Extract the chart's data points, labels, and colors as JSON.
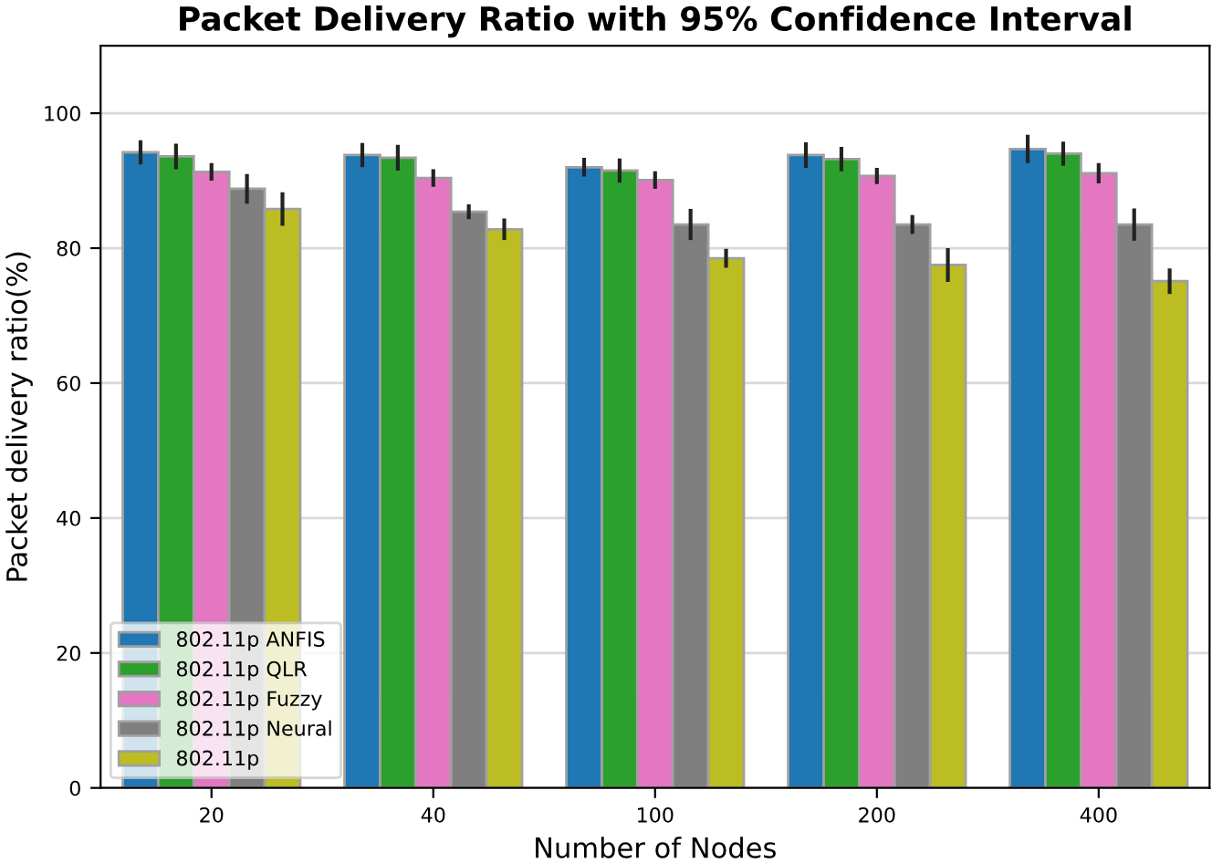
{
  "chart_data": {
    "type": "bar",
    "title": "Packet Delivery Ratio with 95% Confidence Interval",
    "xlabel": "Number of Nodes",
    "ylabel": "Packet delivery ratio(%)",
    "categories": [
      "20",
      "40",
      "100",
      "200",
      "400"
    ],
    "series": [
      {
        "name": "802.11p ANFIS",
        "color": "#1f77b4",
        "values": [
          94.2,
          93.8,
          92.0,
          93.8,
          94.7
        ],
        "errors": [
          1.8,
          1.8,
          1.4,
          1.9,
          2.1
        ]
      },
      {
        "name": "802.11p QLR",
        "color": "#2ca02c",
        "values": [
          93.6,
          93.4,
          91.5,
          93.2,
          94.0
        ],
        "errors": [
          1.9,
          1.9,
          1.8,
          1.8,
          1.8
        ]
      },
      {
        "name": "802.11p Fuzzy",
        "color": "#e377c2",
        "values": [
          91.3,
          90.4,
          90.1,
          90.7,
          91.1
        ],
        "errors": [
          1.3,
          1.3,
          1.3,
          1.2,
          1.5
        ]
      },
      {
        "name": "802.11p Neural",
        "color": "#7f7f7f",
        "values": [
          88.8,
          85.4,
          83.5,
          83.5,
          83.5
        ],
        "errors": [
          2.2,
          1.1,
          2.3,
          1.4,
          2.4
        ]
      },
      {
        "name": "802.11p",
        "color": "#bcbd22",
        "values": [
          85.8,
          82.8,
          78.5,
          77.5,
          75.1
        ],
        "errors": [
          2.5,
          1.6,
          1.4,
          2.5,
          1.9
        ]
      }
    ],
    "ylim": [
      0,
      110
    ],
    "yticks": [
      0,
      20,
      40,
      60,
      80,
      100
    ],
    "grid": "y",
    "legend": "bottom left"
  }
}
